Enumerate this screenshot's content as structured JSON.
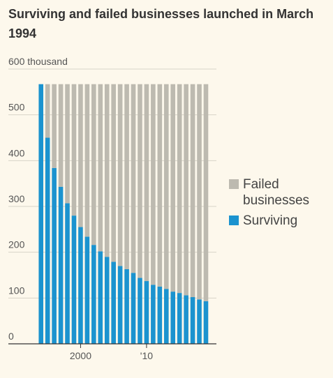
{
  "chart_data": {
    "type": "stacked-bar",
    "title": "Surviving and failed businesses launched in March 1994",
    "categories": [
      null,
      null,
      null,
      null,
      null,
      null,
      "2000",
      null,
      null,
      null,
      null,
      null,
      null,
      null,
      null,
      null,
      "'10",
      null,
      null,
      null,
      null,
      null,
      null,
      null,
      null,
      null
    ],
    "series": [
      {
        "name": "Surviving",
        "color": "#1b93cf",
        "values": [
          567,
          450,
          384,
          343,
          307,
          280,
          255,
          234,
          216,
          202,
          190,
          179,
          170,
          163,
          155,
          144,
          137,
          129,
          125,
          120,
          114,
          111,
          106,
          102,
          97,
          93
        ]
      },
      {
        "name": "Failed businesses",
        "color": "#bdbab0",
        "values": [
          0,
          117,
          183,
          224,
          260,
          287,
          312,
          333,
          351,
          365,
          377,
          388,
          397,
          404,
          412,
          423,
          430,
          438,
          442,
          447,
          453,
          456,
          461,
          465,
          470,
          474
        ]
      }
    ],
    "legend_order": [
      1,
      0
    ],
    "ylim": [
      0,
      600
    ],
    "yticks": [
      0,
      100,
      200,
      300,
      400,
      500,
      {
        "value": 600,
        "label": "600 thousand"
      }
    ],
    "grid": true
  }
}
